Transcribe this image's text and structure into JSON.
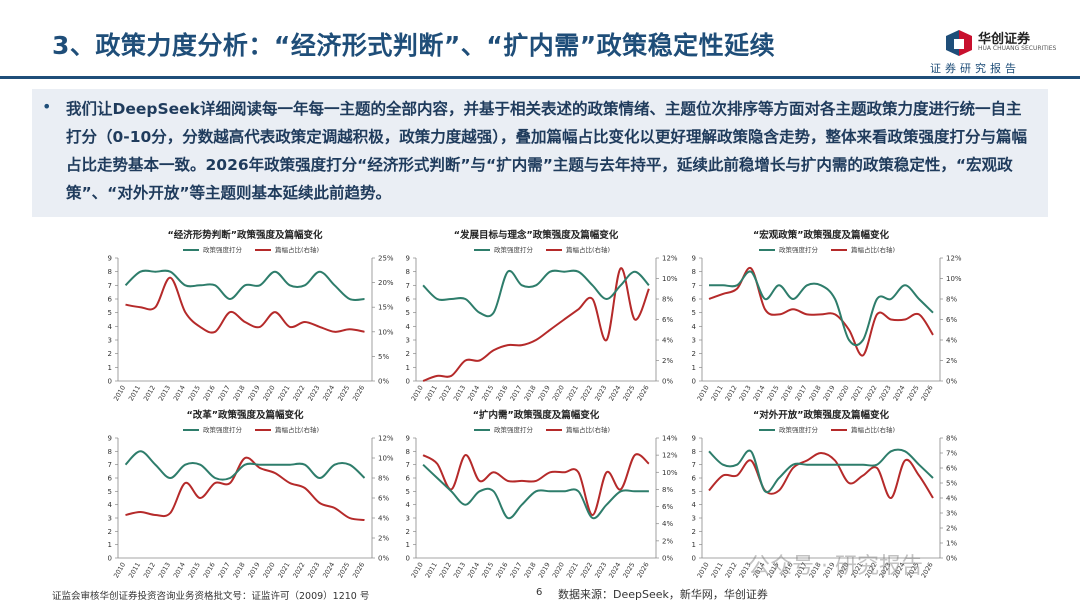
{
  "page": {
    "title": "3、政策力度分析：“经济形式判断”、“扩内需”政策稳定性延续",
    "logo_text": "华创证券",
    "logo_sub": "HUA CHUANG SECURITIES",
    "report_tag": "证券研究报告",
    "summary_bullet": "•",
    "summary": "我们让DeepSeek详细阅读每一年每一主题的全部内容，并基于相关表述的政策情绪、主题位次排序等方面对各主题政策力度进行统一自主打分（0-10分，分数越高代表政策定调越积极，政策力度越强），叠加篇幅占比变化以更好理解政策隐含走势，整体来看政策强度打分与篇幅占比走势基本一致。2026年政策强度打分“经济形式判断”与“扩内需”主题与去年持平，延续此前稳增长与扩内需的政策稳定性，“宏观政策”、“对外开放”等主题则基本延续此前趋势。",
    "footer": "证监会审核华创证券投资咨询业务资格批文号：证监许可（2009）1210 号",
    "page_number": "6",
    "source": "数据来源：DeepSeek，新华网，华创证券",
    "watermark": "公众号 · 研究报告",
    "colors": {
      "title": "#1f4e79",
      "score": "#2e7d6b",
      "share": "#b52a2a",
      "logo_blue": "#1f4e79",
      "logo_red": "#c8102e"
    }
  },
  "chart_data": [
    {
      "type": "line",
      "title": "“经济形势判断”政策强度及篇幅变化",
      "categories": [
        "2010",
        "2011",
        "2012",
        "2013",
        "2014",
        "2015",
        "2016",
        "2017",
        "2018",
        "2019",
        "2020",
        "2021",
        "2022",
        "2023",
        "2024",
        "2025",
        "2026"
      ],
      "left_ticks": [
        "0",
        "1",
        "2",
        "3",
        "4",
        "5",
        "6",
        "7",
        "8",
        "9"
      ],
      "right_ticks": [
        "0%",
        "5%",
        "10%",
        "15%",
        "20%",
        "25%"
      ],
      "ylim": [
        0,
        9
      ],
      "y2lim": [
        0,
        25
      ],
      "series": [
        {
          "name": "政策强度打分",
          "axis": "left",
          "values": [
            7,
            8,
            8,
            8,
            7,
            7,
            7,
            6,
            7,
            7,
            8,
            7,
            7,
            8,
            7,
            6,
            6
          ]
        },
        {
          "name": "篇幅占比(右轴)",
          "axis": "right",
          "values": [
            15.5,
            15,
            15,
            21,
            14,
            11,
            10,
            14,
            12,
            11,
            14,
            11,
            12,
            11,
            10,
            10.5,
            10
          ]
        }
      ]
    },
    {
      "type": "line",
      "title": "“发展目标与理念”政策强度及篇幅变化",
      "categories": [
        "2010",
        "2011",
        "2012",
        "2013",
        "2014",
        "2015",
        "2016",
        "2017",
        "2018",
        "2019",
        "2020",
        "2021",
        "2022",
        "2023",
        "2024",
        "2025",
        "2026"
      ],
      "left_ticks": [
        "0",
        "1",
        "2",
        "3",
        "4",
        "5",
        "6",
        "7",
        "8",
        "9"
      ],
      "right_ticks": [
        "0%",
        "2%",
        "4%",
        "6%",
        "8%",
        "10%",
        "12%"
      ],
      "ylim": [
        0,
        9
      ],
      "y2lim": [
        0,
        12
      ],
      "series": [
        {
          "name": "政策强度打分",
          "axis": "left",
          "values": [
            7,
            6,
            6,
            6,
            5,
            5,
            8,
            7,
            7,
            8,
            8,
            8,
            7,
            6,
            7,
            8,
            7
          ]
        },
        {
          "name": "篇幅占比(右轴)",
          "axis": "right",
          "values": [
            0,
            0.5,
            0.5,
            2,
            2,
            3,
            3.5,
            3.5,
            4,
            5,
            6,
            7,
            8,
            4,
            11,
            6,
            9
          ]
        }
      ]
    },
    {
      "type": "line",
      "title": "“宏观政策”政策强度及篇幅变化",
      "categories": [
        "2010",
        "2011",
        "2012",
        "2013",
        "2014",
        "2015",
        "2016",
        "2017",
        "2018",
        "2019",
        "2020",
        "2021",
        "2022",
        "2023",
        "2024",
        "2025",
        "2026"
      ],
      "left_ticks": [
        "0",
        "1",
        "2",
        "3",
        "4",
        "5",
        "6",
        "7",
        "8",
        "9"
      ],
      "right_ticks": [
        "0%",
        "2%",
        "4%",
        "6%",
        "8%",
        "10%",
        "12%"
      ],
      "ylim": [
        0,
        9
      ],
      "y2lim": [
        0,
        12
      ],
      "series": [
        {
          "name": "政策强度打分",
          "axis": "left",
          "values": [
            7,
            7,
            7,
            8,
            6,
            7,
            6,
            7,
            7,
            6,
            3,
            3,
            6,
            6,
            7,
            6,
            5
          ]
        },
        {
          "name": "篇幅占比(右轴)",
          "axis": "right",
          "values": [
            8,
            8.5,
            9,
            11,
            7,
            6.5,
            7,
            6.5,
            6.5,
            6.5,
            5,
            2.5,
            6.5,
            6,
            6,
            6.5,
            4.5
          ]
        }
      ]
    },
    {
      "type": "line",
      "title": "“改革”政策强度及篇幅变化",
      "categories": [
        "2010",
        "2011",
        "2012",
        "2013",
        "2014",
        "2015",
        "2016",
        "2017",
        "2018",
        "2019",
        "2020",
        "2021",
        "2022",
        "2023",
        "2024",
        "2025",
        "2026"
      ],
      "left_ticks": [
        "0",
        "1",
        "2",
        "3",
        "4",
        "5",
        "6",
        "7",
        "8",
        "9"
      ],
      "right_ticks": [
        "0%",
        "2%",
        "4%",
        "6%",
        "8%",
        "10%",
        "12%"
      ],
      "ylim": [
        0,
        9
      ],
      "y2lim": [
        0,
        12
      ],
      "series": [
        {
          "name": "政策强度打分",
          "axis": "left",
          "values": [
            7,
            8,
            7,
            6,
            7,
            7,
            6,
            6,
            7,
            7,
            7,
            7,
            7,
            6,
            7,
            7,
            6
          ]
        },
        {
          "name": "篇幅占比(右轴)",
          "axis": "right",
          "values": [
            4.3,
            4.6,
            4.3,
            4.5,
            7.5,
            6,
            7.5,
            7.5,
            10,
            9,
            8.5,
            7.5,
            7,
            5.5,
            5,
            4,
            3.8
          ]
        }
      ]
    },
    {
      "type": "line",
      "title": "“扩内需”政策强度及篇幅变化",
      "categories": [
        "2010",
        "2011",
        "2012",
        "2013",
        "2014",
        "2015",
        "2016",
        "2017",
        "2018",
        "2019",
        "2020",
        "2021",
        "2022",
        "2023",
        "2024",
        "2025",
        "2026"
      ],
      "left_ticks": [
        "0",
        "1",
        "2",
        "3",
        "4",
        "5",
        "6",
        "7",
        "8",
        "9"
      ],
      "right_ticks": [
        "0%",
        "2%",
        "4%",
        "6%",
        "8%",
        "10%",
        "12%",
        "14%"
      ],
      "ylim": [
        0,
        9
      ],
      "y2lim": [
        0,
        14
      ],
      "series": [
        {
          "name": "政策强度打分",
          "axis": "left",
          "values": [
            7,
            6,
            5,
            4,
            5,
            5,
            3,
            4,
            5,
            5,
            5,
            5,
            3,
            4,
            5,
            5,
            5
          ]
        },
        {
          "name": "篇幅占比(右轴)",
          "axis": "right",
          "values": [
            12,
            11,
            8,
            12,
            9,
            10,
            9,
            9,
            9,
            10,
            10,
            10,
            5,
            10,
            8,
            12,
            11
          ]
        }
      ]
    },
    {
      "type": "line",
      "title": "“对外开放”政策强度及篇幅变化",
      "categories": [
        "2010",
        "2011",
        "2012",
        "2013",
        "2014",
        "2015",
        "2016",
        "2017",
        "2018",
        "2019",
        "2020",
        "2021",
        "2022",
        "2023",
        "2024",
        "2025",
        "2026"
      ],
      "left_ticks": [
        "0",
        "1",
        "2",
        "3",
        "4",
        "5",
        "6",
        "7",
        "8",
        "9"
      ],
      "right_ticks": [
        "0%",
        "1%",
        "2%",
        "3%",
        "4%",
        "5%",
        "6%",
        "7%",
        "8%"
      ],
      "ylim": [
        0,
        9
      ],
      "y2lim": [
        0,
        8
      ],
      "series": [
        {
          "name": "政策强度打分",
          "axis": "left",
          "values": [
            8,
            7,
            7,
            8,
            5,
            6,
            7,
            7,
            7,
            7,
            7,
            7,
            7,
            8,
            8,
            7,
            6
          ]
        },
        {
          "name": "篇幅占比(右轴)",
          "axis": "right",
          "values": [
            4.5,
            5.5,
            5.5,
            6.5,
            4.5,
            4.5,
            6,
            6.5,
            7,
            6.5,
            5,
            5.5,
            6,
            4,
            6.5,
            5.5,
            4
          ]
        }
      ]
    }
  ]
}
